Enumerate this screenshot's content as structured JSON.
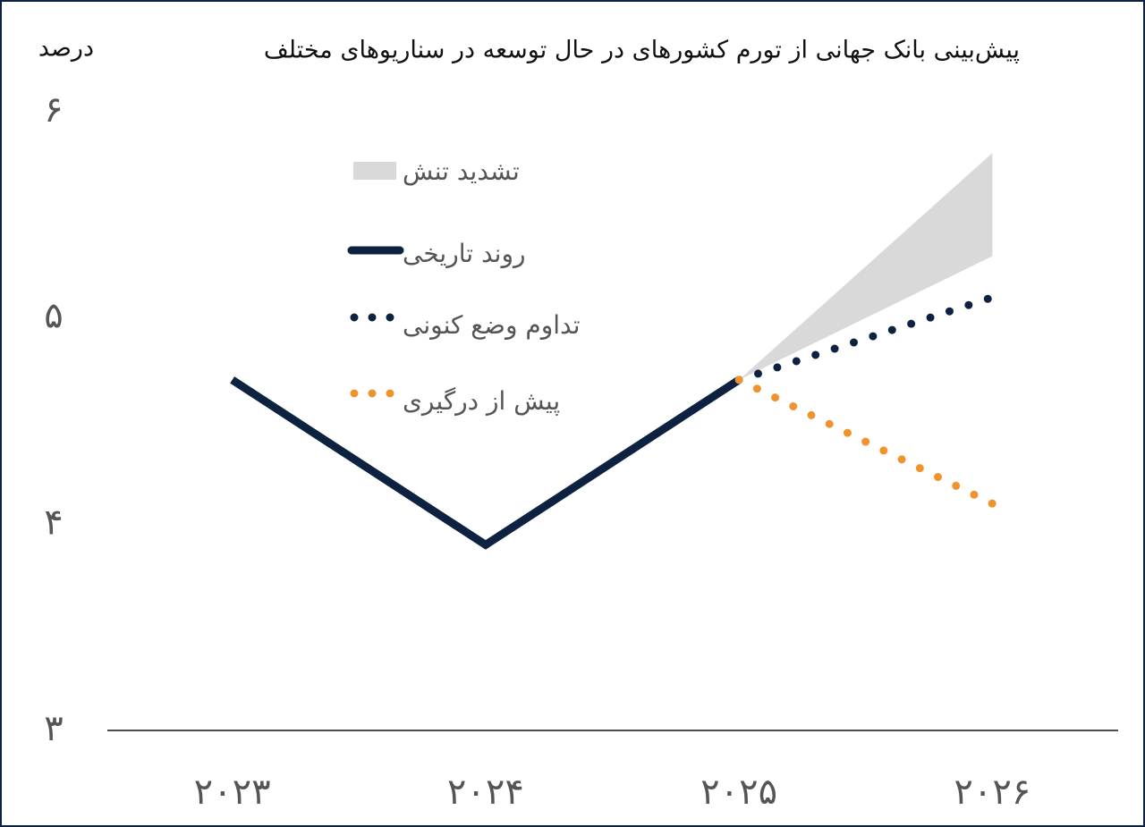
{
  "chart_data": {
    "type": "line",
    "title": "پیش‌بینی بانک جهانی از تورم کشورهای در حال توسعه در سناریوهای مختلف",
    "y_label": "درصد",
    "categories": [
      "۲۰۲۳",
      "۲۰۲۴",
      "۲۰۲۵",
      "۲۰۲۶"
    ],
    "ylim": [
      3,
      6
    ],
    "yticks": [
      {
        "value": 3,
        "label": "۳"
      },
      {
        "value": 4,
        "label": "۴"
      },
      {
        "value": 5,
        "label": "۵"
      },
      {
        "value": 6,
        "label": "۶"
      }
    ],
    "legend": "upper left",
    "series": [
      {
        "name": "تشدید تنش",
        "color": "#d9d9d9",
        "style": "band",
        "low": [
          null,
          null,
          4.7,
          5.3
        ],
        "high": [
          null,
          null,
          4.7,
          5.8
        ]
      },
      {
        "name": "روند تاریخی",
        "color": "#0d2240",
        "style": "solid",
        "values": [
          4.7,
          3.9,
          4.7,
          null
        ]
      },
      {
        "name": "تداوم وضع کنونی",
        "color": "#0d2240",
        "style": "dotted",
        "values": [
          null,
          null,
          4.7,
          5.1
        ]
      },
      {
        "name": "پیش از درگیری",
        "color": "#f0922e",
        "style": "dotted",
        "values": [
          null,
          null,
          4.7,
          4.1
        ]
      }
    ]
  }
}
